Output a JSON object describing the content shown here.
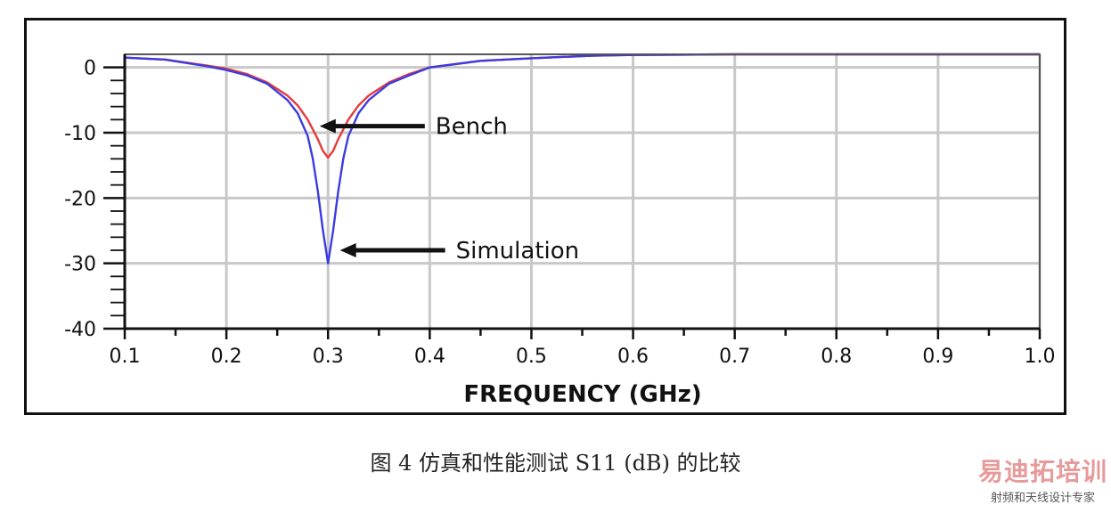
{
  "chart_data": {
    "type": "line",
    "title": "",
    "xlabel": "FREQUENCY (GHz)",
    "ylabel": "",
    "xlim": [
      0.1,
      1.0
    ],
    "ylim": [
      -40,
      2
    ],
    "grid": true,
    "x_ticks": [
      "0.1",
      "0.2",
      "0.3",
      "0.4",
      "0.5",
      "0.6",
      "0.7",
      "0.8",
      "0.9",
      "1.0"
    ],
    "y_ticks": [
      "0",
      "-10",
      "-20",
      "-30",
      "-40"
    ],
    "x_tick_values": [
      0.1,
      0.2,
      0.3,
      0.4,
      0.5,
      0.6,
      0.7,
      0.8,
      0.9,
      1.0
    ],
    "y_tick_values": [
      0,
      -10,
      -20,
      -30,
      -40
    ],
    "series": [
      {
        "name": "Bench",
        "color": "#e83a3a",
        "x": [
          0.1,
          0.14,
          0.18,
          0.2,
          0.22,
          0.24,
          0.26,
          0.27,
          0.28,
          0.29,
          0.295,
          0.3,
          0.305,
          0.31,
          0.32,
          0.33,
          0.34,
          0.36,
          0.38,
          0.4,
          0.45,
          0.5,
          0.56,
          0.6,
          0.7,
          0.8,
          0.9,
          1.0
        ],
        "y": [
          1.5,
          1.2,
          0.3,
          -0.2,
          -1.0,
          -2.3,
          -4.3,
          -5.8,
          -8.0,
          -11.0,
          -12.8,
          -13.8,
          -12.8,
          -11.0,
          -8.0,
          -5.8,
          -4.3,
          -2.3,
          -1.0,
          0.0,
          1.0,
          1.4,
          1.8,
          1.9,
          2.0,
          2.0,
          2.0,
          2.0
        ]
      },
      {
        "name": "Simulation",
        "color": "#3b3be0",
        "x": [
          0.1,
          0.14,
          0.18,
          0.2,
          0.22,
          0.24,
          0.26,
          0.27,
          0.28,
          0.285,
          0.29,
          0.295,
          0.3,
          0.305,
          0.31,
          0.315,
          0.32,
          0.33,
          0.34,
          0.36,
          0.38,
          0.4,
          0.45,
          0.5,
          0.56,
          0.6,
          0.7,
          0.8,
          0.9,
          1.0
        ],
        "y": [
          1.5,
          1.2,
          0.2,
          -0.4,
          -1.2,
          -2.5,
          -5.0,
          -7.0,
          -10.5,
          -14.0,
          -19.0,
          -25.0,
          -30.0,
          -25.0,
          -19.0,
          -14.0,
          -10.5,
          -7.0,
          -5.0,
          -2.5,
          -1.2,
          0.0,
          1.0,
          1.4,
          1.8,
          1.9,
          2.0,
          2.0,
          2.0,
          2.0
        ]
      }
    ],
    "annotations": [
      {
        "text": "Bench",
        "x": 0.29,
        "y": -9.0
      },
      {
        "text": "Simulation",
        "x": 0.31,
        "y": -28.0
      }
    ]
  },
  "caption": "图 4 仿真和性能测试 S11 (dB) 的比较",
  "watermark": {
    "main": "易迪拓培训",
    "sub": "射频和天线设计专家"
  }
}
